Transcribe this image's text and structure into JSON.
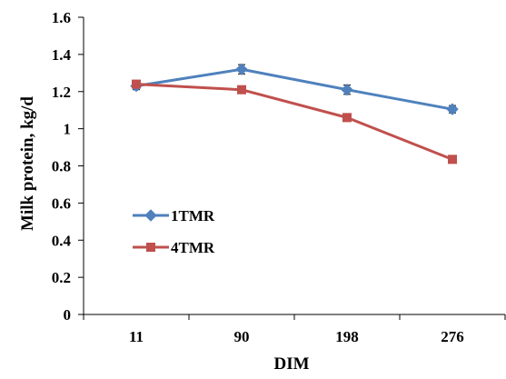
{
  "chart_data": {
    "type": "line",
    "title": "",
    "xlabel": "DIM",
    "ylabel": "Milk protein, kg/d",
    "categories": [
      "11",
      "90",
      "198",
      "276"
    ],
    "ylim": [
      0,
      1.6
    ],
    "yticks": [
      "0",
      "0.2",
      "0.4",
      "0.6",
      "0.8",
      "1",
      "1.2",
      "1.4",
      "1.6"
    ],
    "grid": false,
    "legend_position": "left-center",
    "series": [
      {
        "name": "1TMR",
        "values": [
          1.23,
          1.32,
          1.21,
          1.105
        ],
        "errors": [
          0.02,
          0.025,
          0.025,
          0.02
        ],
        "color": "#4F81BD",
        "marker": "diamond"
      },
      {
        "name": "4TMR",
        "values": [
          1.24,
          1.21,
          1.06,
          0.835
        ],
        "errors": [
          0.015,
          0.02,
          0.02,
          0.02
        ],
        "color": "#C0504D",
        "marker": "square"
      }
    ]
  }
}
